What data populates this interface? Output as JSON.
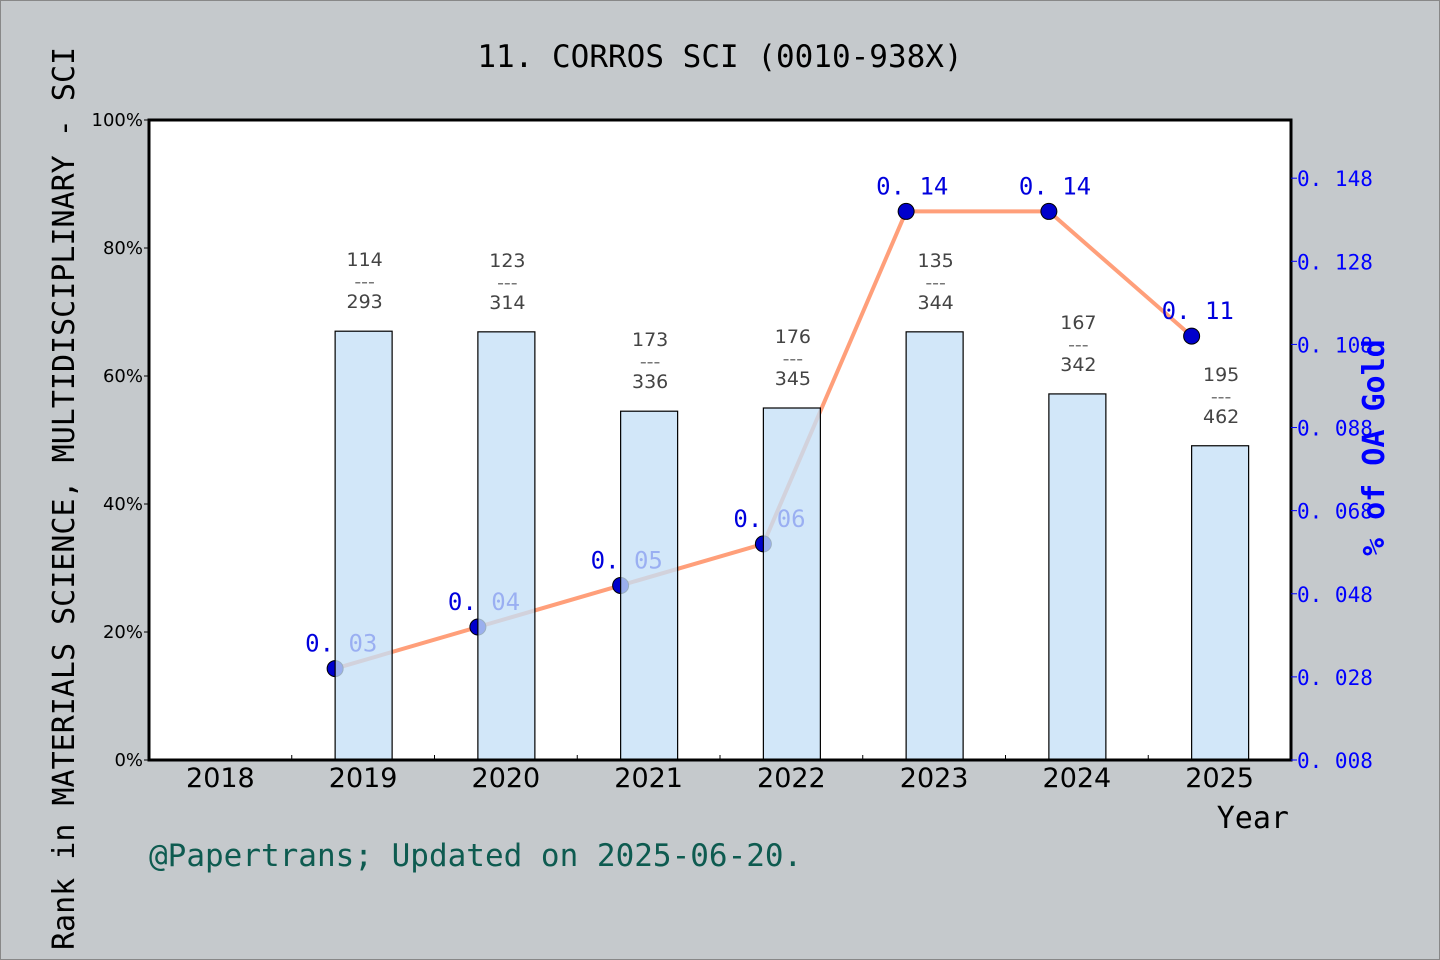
{
  "chart_data": {
    "type": "bar+line",
    "title": "11. CORROS SCI (0010-938X)",
    "xlabel": "Year",
    "ylabel": "Rank in MATERIALS SCIENCE, MULTIDISCIPLINARY - SCI",
    "y2label": "% of OA Gold",
    "categories": [
      "2018",
      "2019",
      "2020",
      "2021",
      "2022",
      "2023",
      "2024",
      "2025"
    ],
    "ylim": [
      0,
      100
    ],
    "yticks": [
      "0%",
      "20%",
      "40%",
      "60%",
      "80%",
      "100%"
    ],
    "y2lim": [
      0.008,
      0.162
    ],
    "y2ticks": [
      "0. 008",
      "0. 028",
      "0. 048",
      "0. 068",
      "0. 088",
      "0. 108",
      "0. 128",
      "0. 148"
    ],
    "bars": {
      "values_percent": [
        null,
        67.0,
        66.9,
        54.5,
        55.0,
        66.9,
        57.2,
        49.1
      ],
      "rank_labels": [
        null,
        "114",
        "123",
        "173",
        "176",
        "135",
        "167",
        "195"
      ],
      "total_labels": [
        null,
        "293",
        "314",
        "336",
        "345",
        "344",
        "342",
        "462"
      ],
      "separator": "---",
      "color": "#c5e0f7"
    },
    "line": {
      "values": [
        null,
        0.03,
        0.04,
        0.05,
        0.06,
        0.14,
        0.14,
        0.11
      ],
      "labels": [
        null,
        "0. 03",
        "0. 04",
        "0. 05",
        "0. 06",
        "0. 14",
        "0. 14",
        "0. 11"
      ],
      "color": "#ff9f7a",
      "marker_color": "#0000cc"
    },
    "grid": false,
    "legend": "none"
  },
  "footer": "@Papertrans; Updated on 2025-06-20.",
  "colors": {
    "background": "#c5c9cc",
    "axis_right": "#0000ff",
    "footer": "#0e5b50"
  }
}
